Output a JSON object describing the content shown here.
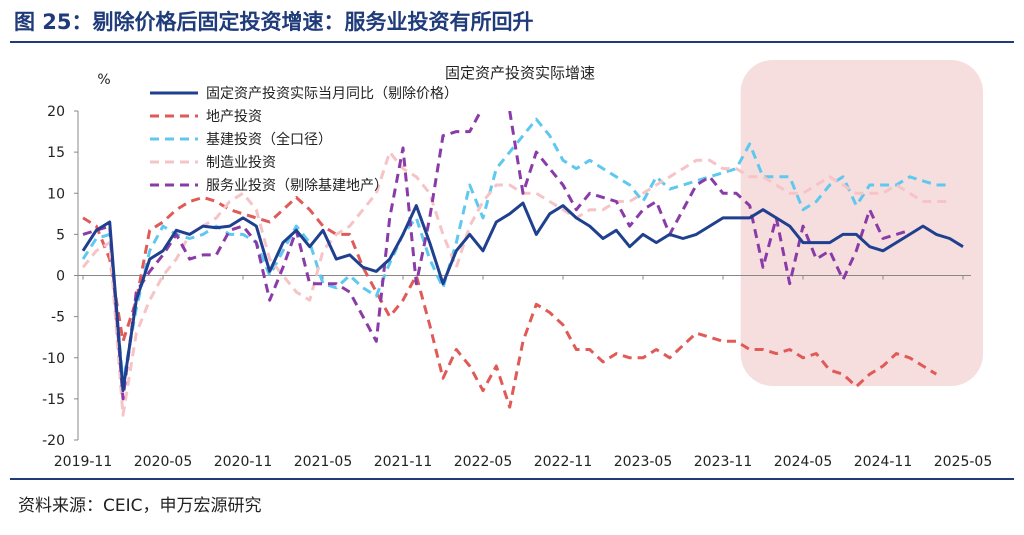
{
  "header": {
    "title": "图 25：剔除价格后固定投资增速：服务业投资有所回升"
  },
  "footer": {
    "source": "资料来源：CEIC，申万宏源研究"
  },
  "chart_data": {
    "type": "line",
    "title": "固定资产投资实际增速",
    "ylabel": "%",
    "ylim": [
      -20,
      20
    ],
    "yticks": [
      20,
      15,
      10,
      5,
      0,
      -5,
      -10,
      -15,
      -20
    ],
    "x_tick_labels": [
      "2019-11",
      "2020-05",
      "2020-11",
      "2021-05",
      "2021-11",
      "2022-05",
      "2022-11",
      "2023-05",
      "2023-11",
      "2024-05",
      "2024-11",
      "2025-05"
    ],
    "x_tick_index": [
      0,
      6,
      12,
      18,
      24,
      30,
      36,
      42,
      48,
      54,
      60,
      66
    ],
    "x_start": "2019-11",
    "n_periods": 67,
    "highlight": {
      "label": "shaded period",
      "from_index": 50,
      "to_index": 67
    },
    "legend_position": "top-left",
    "series": [
      {
        "name": "固定资产投资实际当月同比（剔除价格）",
        "color": "#1f3f8f",
        "dash": "solid",
        "values": [
          3,
          5.5,
          6.5,
          -14,
          -3,
          2,
          3,
          5.5,
          5,
          6,
          5.8,
          6,
          7,
          6,
          0.5,
          4,
          5.5,
          3.5,
          5.5,
          2,
          2.5,
          1,
          0.5,
          2,
          5,
          8.5,
          4,
          -1,
          3,
          5,
          3,
          6.5,
          7.5,
          8.8,
          5,
          7.5,
          8.5,
          7,
          6,
          4.5,
          5.5,
          3.5,
          5,
          4,
          5,
          4.5,
          5,
          6,
          7,
          7,
          7,
          8,
          7,
          6,
          4,
          4,
          4,
          5,
          5,
          3.5,
          3,
          4,
          5,
          6,
          5,
          4.5,
          3.5
        ]
      },
      {
        "name": "地产投资",
        "color": "#e05a57",
        "dash": "dashed",
        "values": [
          7,
          6,
          2,
          -8,
          -3,
          5.5,
          6.5,
          8,
          9,
          9.5,
          9,
          8,
          7.5,
          7,
          6.5,
          8,
          9.5,
          8,
          6,
          5,
          5,
          1,
          -2,
          -5,
          -3,
          0,
          -6,
          -12.5,
          -9,
          -11,
          -14,
          -11,
          -16,
          -8,
          -3.5,
          -4.5,
          -6,
          -9,
          -9,
          -10.5,
          -9.5,
          -10,
          -10,
          -9,
          -10,
          -8.5,
          -7,
          -7.5,
          -8,
          -8,
          -9,
          -9,
          -9.5,
          -9,
          -10,
          -9.5,
          -11.5,
          -12,
          -13.5,
          -12,
          -11,
          -9.5,
          -10,
          -11,
          -12
        ]
      },
      {
        "name": "基建投资（全口径）",
        "color": "#5ec8ee",
        "dash": "dashed",
        "values": [
          2,
          4.5,
          5,
          -13,
          -4,
          3,
          6,
          5,
          4.5,
          5,
          6,
          5,
          5,
          4,
          0,
          3,
          6,
          4,
          -1,
          -1.5,
          0,
          -1.5,
          -2.5,
          1.5,
          5,
          7,
          2,
          -1.5,
          4,
          11,
          7,
          13,
          15,
          17,
          19,
          17,
          14,
          13,
          14,
          13,
          12,
          11,
          9,
          12,
          10.5,
          11,
          11.5,
          12,
          12.5,
          13,
          16,
          12,
          12,
          12,
          8,
          9,
          11,
          12,
          8.5,
          11,
          11,
          11,
          12,
          11.5,
          11,
          11
        ]
      },
      {
        "name": "制造业投资",
        "color": "#f6c4c6",
        "dash": "dashed",
        "values": [
          1,
          3,
          4,
          -17,
          -7,
          -3,
          0,
          2,
          5,
          6,
          7,
          9,
          10,
          8,
          2,
          0,
          -2,
          -3,
          3,
          5,
          6,
          8,
          10,
          15,
          13,
          12,
          10,
          5,
          1,
          6,
          9,
          11,
          11,
          10,
          10,
          9,
          8,
          7,
          8,
          8,
          9,
          9,
          10,
          11,
          12,
          13,
          14,
          14,
          13,
          13,
          12,
          12,
          11,
          10,
          10,
          11,
          12,
          11,
          10,
          10,
          10,
          11,
          10,
          9,
          9,
          9
        ]
      },
      {
        "name": "服务业投资（剔除基建地产）",
        "color": "#8a3ba8",
        "dash": "dashed",
        "values": [
          5,
          5.5,
          6,
          -15,
          -2,
          0.5,
          2.5,
          5,
          2,
          2.5,
          2.5,
          5.5,
          6,
          4,
          -3,
          1,
          5.5,
          -1,
          -1,
          -1,
          -2,
          -5,
          -8,
          7,
          15.5,
          -1,
          7,
          17,
          17.5,
          17.5,
          20.5,
          null,
          20,
          10,
          15,
          13,
          11,
          8,
          10,
          9.5,
          9,
          6,
          8,
          9,
          5,
          8,
          11,
          12,
          10,
          10,
          8.5,
          1,
          7,
          -1,
          6,
          2,
          3,
          -0.5,
          3,
          8,
          4.5,
          5,
          5.5
        ]
      }
    ]
  }
}
